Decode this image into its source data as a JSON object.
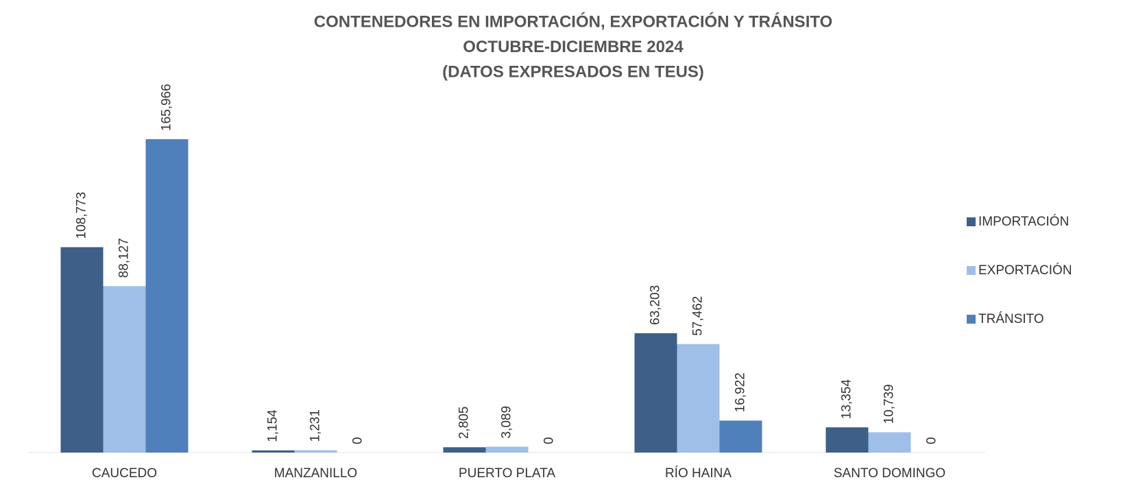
{
  "chart_data": {
    "type": "bar",
    "title": [
      "CONTENEDORES  EN IMPORTACIÓN, EXPORTACIÓN  Y TRÁNSITO",
      "OCTUBRE-DICIEMBRE 2024",
      "(DATOS EXPRESADOS EN TEUS)"
    ],
    "categories": [
      "CAUCEDO",
      "MANZANILLO",
      "PUERTO PLATA",
      "RÍO HAINA",
      "SANTO DOMINGO"
    ],
    "series": [
      {
        "name": "IMPORTACIÓN",
        "color": "#3e5f87",
        "values": [
          108773,
          1154,
          2805,
          63203,
          13354
        ],
        "value_labels": [
          "108,773",
          "1,154",
          "2,805",
          "63,203",
          "13,354"
        ]
      },
      {
        "name": "EXPORTACIÓN",
        "color": "#9fbfe8",
        "values": [
          88127,
          1231,
          3089,
          57462,
          10739
        ],
        "value_labels": [
          "88,127",
          "1,231",
          "3,089",
          "57,462",
          "10,739"
        ]
      },
      {
        "name": "TRÁNSITO",
        "color": "#4f80bb",
        "values": [
          165966,
          0,
          0,
          16922,
          0
        ],
        "value_labels": [
          "165,966",
          "0",
          "0",
          "16,922",
          "0"
        ]
      }
    ],
    "legend": "right"
  }
}
